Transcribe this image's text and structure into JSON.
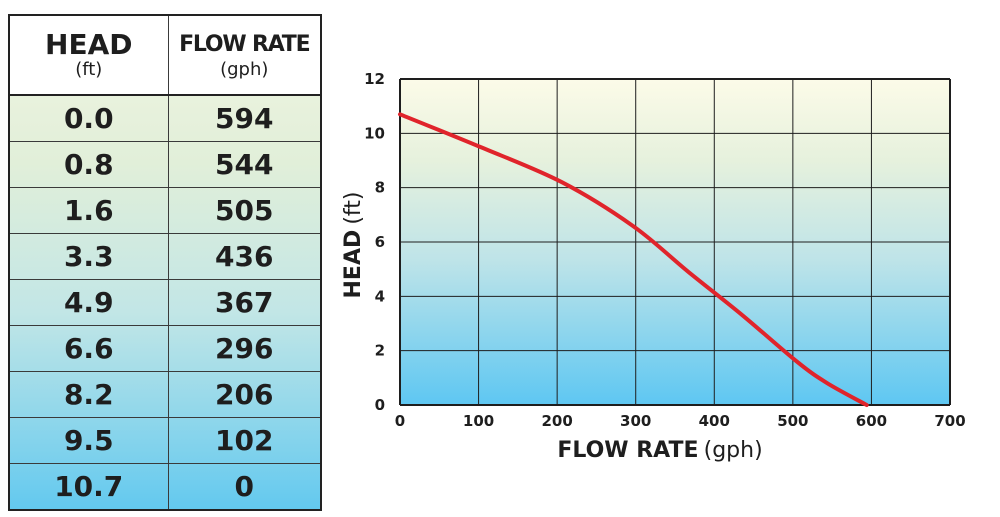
{
  "table": {
    "head_label": "HEAD",
    "head_unit": "(ft)",
    "flow_label": "FLOW RATE",
    "flow_unit": "(gph)",
    "rows": [
      {
        "head": "0.0",
        "flow": "594"
      },
      {
        "head": "0.8",
        "flow": "544"
      },
      {
        "head": "1.6",
        "flow": "505"
      },
      {
        "head": "3.3",
        "flow": "436"
      },
      {
        "head": "4.9",
        "flow": "367"
      },
      {
        "head": "6.6",
        "flow": "296"
      },
      {
        "head": "8.2",
        "flow": "206"
      },
      {
        "head": "9.5",
        "flow": "102"
      },
      {
        "head": "10.7",
        "flow": "0"
      }
    ]
  },
  "chart_data": {
    "type": "line",
    "title": "",
    "xlabel": "FLOW RATE",
    "xlabel_unit": "(gph)",
    "ylabel": "HEAD",
    "ylabel_unit": "(ft)",
    "xlim": [
      0,
      700
    ],
    "ylim": [
      0,
      12
    ],
    "xticks": [
      0,
      100,
      200,
      300,
      400,
      500,
      600,
      700
    ],
    "yticks": [
      0,
      2,
      4,
      6,
      8,
      10,
      12
    ],
    "grid": true,
    "series": [
      {
        "color": "#e0242b",
        "x": [
          0,
          102,
          206,
          296,
          367,
          436,
          505,
          544,
          594
        ],
        "y": [
          10.7,
          9.5,
          8.2,
          6.6,
          4.9,
          3.3,
          1.6,
          0.8,
          0.0
        ]
      }
    ]
  },
  "colors": {
    "curve": "#e0242b",
    "gradient_top": "#fcfbe8",
    "gradient_bottom": "#5ec7f2",
    "grid": "#1e1e1e"
  }
}
